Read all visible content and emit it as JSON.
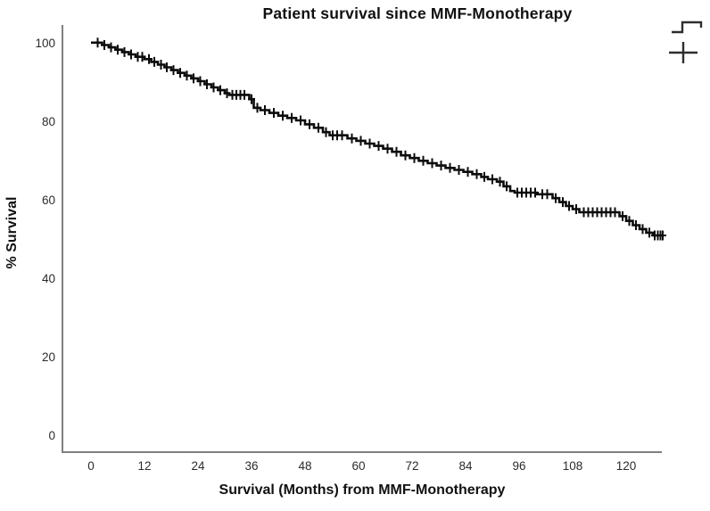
{
  "figure": {
    "title": "Patient survival since MMF-Monotherapy",
    "xlabel": "Survival (Months) from MMF-Monotherapy",
    "ylabel": "% Survival"
  },
  "legend": {
    "survival_function_icon": "step-line",
    "censored_icon": "plus-cross"
  },
  "colors": {
    "curve": "#0c0c0c",
    "axis": "#7f7f7f",
    "tick_text": "#2b2b2b",
    "legend_glyph": "#2e2e2e",
    "background": "#ffffff"
  },
  "chart_data": {
    "type": "line",
    "subtype": "kaplan-meier-step",
    "title": "Patient survival since MMF-Monotherapy",
    "xlabel": "Survival (Months) from MMF-Monotherapy",
    "ylabel": "% Survival",
    "x_ticks": [
      0,
      12,
      24,
      36,
      48,
      60,
      72,
      84,
      96,
      108,
      120
    ],
    "y_ticks": [
      0,
      20,
      40,
      60,
      80,
      100
    ],
    "xlim": [
      -6.4,
      128
    ],
    "ylim": [
      -4.3,
      104.5
    ],
    "grid": false,
    "legend_position": "top-right",
    "end_month": 128.2,
    "steps": [
      [
        0,
        100
      ],
      [
        2.5,
        99.4
      ],
      [
        4,
        98.8
      ],
      [
        5.5,
        98.2
      ],
      [
        7,
        97.6
      ],
      [
        8.5,
        97.0
      ],
      [
        10,
        96.4
      ],
      [
        12,
        95.8
      ],
      [
        13.5,
        95.1
      ],
      [
        15,
        94.4
      ],
      [
        16.5,
        93.7
      ],
      [
        18,
        93.0
      ],
      [
        19.5,
        92.3
      ],
      [
        21,
        91.6
      ],
      [
        22.5,
        90.9
      ],
      [
        24,
        90.2
      ],
      [
        25.5,
        89.4
      ],
      [
        27,
        88.6
      ],
      [
        28.5,
        87.9
      ],
      [
        30,
        87.1
      ],
      [
        31,
        86.7
      ],
      [
        35.5,
        85.6
      ],
      [
        36.5,
        83.4
      ],
      [
        38,
        82.8
      ],
      [
        40,
        82.1
      ],
      [
        42,
        81.4
      ],
      [
        44,
        80.8
      ],
      [
        46,
        80.2
      ],
      [
        48,
        79.2
      ],
      [
        50,
        78.3
      ],
      [
        52,
        77.2
      ],
      [
        53.5,
        76.4
      ],
      [
        57.5,
        75.6
      ],
      [
        59.5,
        75.0
      ],
      [
        61.5,
        74.3
      ],
      [
        63.5,
        73.7
      ],
      [
        65.5,
        73.0
      ],
      [
        67.5,
        72.2
      ],
      [
        69.5,
        71.3
      ],
      [
        71.5,
        70.6
      ],
      [
        73.5,
        69.9
      ],
      [
        75.5,
        69.3
      ],
      [
        77.5,
        68.7
      ],
      [
        79.5,
        68.1
      ],
      [
        81.5,
        67.6
      ],
      [
        83.5,
        67.1
      ],
      [
        85.5,
        66.5
      ],
      [
        87.5,
        65.8
      ],
      [
        89,
        65.2
      ],
      [
        91,
        64.6
      ],
      [
        92.5,
        63.4
      ],
      [
        94,
        62.2
      ],
      [
        95,
        61.8
      ],
      [
        100,
        61.4
      ],
      [
        103.5,
        60.4
      ],
      [
        105,
        59.4
      ],
      [
        106.5,
        58.4
      ],
      [
        108,
        57.6
      ],
      [
        109.5,
        56.8
      ],
      [
        118.5,
        55.8
      ],
      [
        120,
        54.6
      ],
      [
        121.5,
        53.5
      ],
      [
        123,
        52.5
      ],
      [
        124.5,
        51.6
      ],
      [
        126,
        50.9
      ]
    ],
    "censored_months": [
      1.5,
      3,
      4.5,
      6,
      7.5,
      9,
      10.5,
      11.5,
      13,
      14.2,
      15.7,
      17,
      18.5,
      20,
      21.5,
      23,
      24.5,
      26,
      27.5,
      29,
      30.5,
      31.7,
      32.6,
      33.5,
      34.4,
      36,
      37.3,
      39,
      41,
      43,
      45,
      47,
      49,
      51,
      52.7,
      54.2,
      55.2,
      56.3,
      58.5,
      60.5,
      62.5,
      64.5,
      66.5,
      68.5,
      70.5,
      72.5,
      74.5,
      76.5,
      78.5,
      80.5,
      82.5,
      84.5,
      86.5,
      88.2,
      90,
      91.7,
      93.2,
      95.6,
      96.6,
      97.6,
      98.6,
      99.6,
      101.2,
      102.3,
      104.2,
      105.8,
      107.2,
      108.8,
      110.5,
      111.5,
      112.5,
      113.5,
      114.5,
      115.5,
      116.5,
      117.5,
      119.2,
      120.7,
      122.2,
      123.7,
      125.2,
      126.4,
      127.1,
      127.7,
      128.2
    ]
  }
}
